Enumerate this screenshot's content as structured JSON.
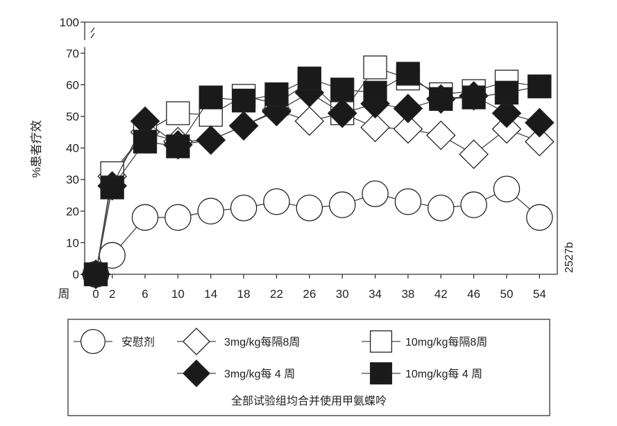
{
  "chart_data": {
    "type": "line",
    "ylabel": "%患者疗效",
    "x_axis_prefix": "周",
    "x": [
      0,
      2,
      6,
      10,
      14,
      18,
      22,
      26,
      30,
      34,
      38,
      42,
      46,
      50,
      54
    ],
    "y_ticks": [
      0,
      10,
      20,
      30,
      40,
      50,
      60,
      70,
      100
    ],
    "axis_break": true,
    "ylim": [
      0,
      100
    ],
    "grid": false,
    "figure_code": "2527b",
    "legend_note": "全部试验组均合并使用甲氨蝶呤",
    "series": [
      {
        "name": "安慰剂",
        "marker": "circle-open",
        "values": [
          0,
          6,
          18,
          18,
          20,
          21,
          23,
          21,
          22,
          25.5,
          23,
          21,
          22,
          27,
          18
        ]
      },
      {
        "name": "3mg/kg每隔8周",
        "marker": "diamond-open",
        "values": [
          0,
          31,
          45,
          42,
          42.5,
          47,
          52,
          48.5,
          51,
          46.5,
          46,
          44,
          38,
          46,
          42
        ]
      },
      {
        "name": "10mg/kg每隔8周",
        "marker": "square-open",
        "values": [
          0,
          32,
          45,
          51,
          50.5,
          56.5,
          54,
          61,
          51,
          65.5,
          62,
          57,
          58,
          61,
          59.5
        ]
      },
      {
        "name": "3mg/kg每 4 周",
        "marker": "diamond-filled",
        "values": [
          0,
          28,
          48.5,
          41,
          42.5,
          47,
          51.5,
          57.5,
          51,
          54,
          52.5,
          55.5,
          56.5,
          51,
          48
        ]
      },
      {
        "name": "10mg/kg每 4 周",
        "marker": "square-filled",
        "values": [
          0,
          27.5,
          42,
          40.5,
          56,
          55,
          57,
          62,
          58.5,
          57.5,
          63.5,
          55.5,
          56,
          57.5,
          59.5
        ]
      }
    ],
    "colors": {
      "line": "#444444",
      "marker_stroke": "#222222",
      "filled": "#1a1a1a",
      "open": "#ffffff"
    }
  }
}
